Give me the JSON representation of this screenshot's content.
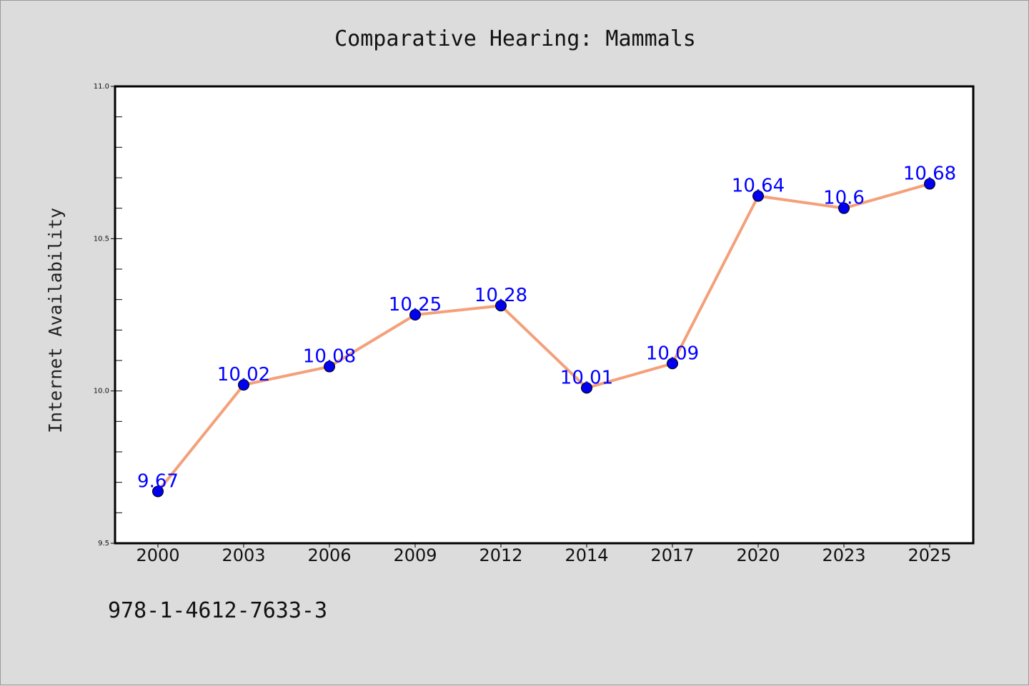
{
  "chart_data": {
    "type": "line",
    "title": "Comparative Hearing: Mammals",
    "xlabel": "",
    "ylabel": "Internet Availability",
    "categories": [
      "2000",
      "2003",
      "2006",
      "2009",
      "2012",
      "2014",
      "2017",
      "2020",
      "2023",
      "2025"
    ],
    "series": [
      {
        "values": [
          9.67,
          10.02,
          10.08,
          10.25,
          10.28,
          10.01,
          10.09,
          10.64,
          10.6,
          10.68
        ],
        "line_color": "#f4a07a",
        "marker_color": "#0000ee"
      }
    ],
    "data_labels": [
      "9.67",
      "10.02",
      "10.08",
      "10.25",
      "10.28",
      "10.01",
      "10.09",
      "10.64",
      "10.6",
      "10.68"
    ],
    "ylim": [
      9.5,
      11.0
    ],
    "yticks": [
      9.5,
      10.0,
      10.5,
      11.0
    ],
    "ytick_labels": [
      "9.5",
      "10.0",
      "10.5",
      "11.0"
    ],
    "y_minor_step": 0.1,
    "grid": false,
    "legend": "none",
    "label_color": "#0000ff",
    "plot_background": "#ffffff",
    "page_background": "#dcdcdc"
  },
  "footer": {
    "isbn": "978-1-4612-7633-3"
  }
}
